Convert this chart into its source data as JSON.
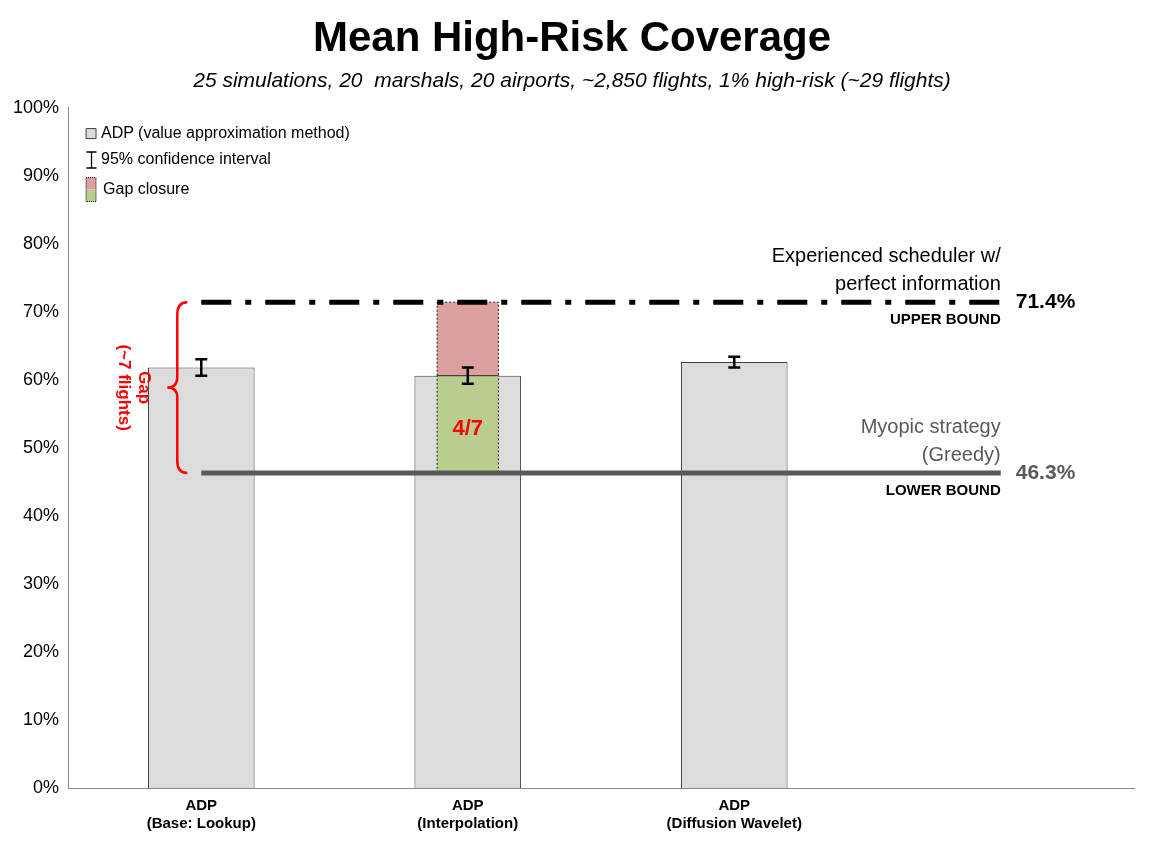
{
  "chart_data": {
    "type": "bar",
    "title": "Mean High-Risk Coverage",
    "subtitle": "25 simulations, 20  marshals, 20 airports, ~2,850 flights, 1% high-risk (~29 flights)",
    "categories": [
      "ADP\n(Base: Lookup)",
      "ADP\n(Interpolation)",
      "ADP\n(Diffusion Wavelet)",
      null
    ],
    "series": [
      {
        "name": "ADP (value approximation method)",
        "color": "#dcdcdc",
        "values": [
          61.8,
          60.6,
          62.6,
          null
        ],
        "errors": [
          1.2,
          1.2,
          0.8,
          null
        ]
      },
      {
        "name": "Gap closure",
        "color": "#b9cd8f",
        "base": [
          null,
          46.3,
          null,
          null
        ],
        "values": [
          null,
          14.3,
          null,
          null
        ]
      },
      {
        "color": "#dba09f",
        "base": [
          null,
          60.6,
          null,
          null
        ],
        "values": [
          null,
          10.8,
          null,
          null
        ]
      }
    ],
    "ylim": [
      0,
      100
    ],
    "yticks": [
      {
        "value": 0,
        "label": "0%"
      },
      {
        "value": 10,
        "label": "10%"
      },
      {
        "value": 20,
        "label": "20%"
      },
      {
        "value": 30,
        "label": "30%"
      },
      {
        "value": 40,
        "label": "40%"
      },
      {
        "value": 50,
        "label": "50%"
      },
      {
        "value": 60,
        "label": "60%"
      },
      {
        "value": 70,
        "label": "70%"
      },
      {
        "value": 80,
        "label": "80%"
      },
      {
        "value": 90,
        "label": "90%"
      },
      {
        "value": 100,
        "label": "100%"
      }
    ],
    "ref_lines": [
      {
        "axis": "y",
        "value": 71.4,
        "label": "Experienced scheduler w/\nperfect information",
        "color": "#000000",
        "line_style": "dashed"
      },
      {
        "axis": "y",
        "value": 46.3,
        "label": "Myopic strategy\n(Greedy)",
        "color": "#595959",
        "line_style": "solid"
      }
    ],
    "annotations": [
      "95% confidence interval",
      "Gap\n(~7 flights)",
      "4/7",
      "UPPER BOUND",
      "71.4%",
      "LOWER BOUND",
      "46.3%"
    ],
    "legend": "top left",
    "grid": false
  }
}
